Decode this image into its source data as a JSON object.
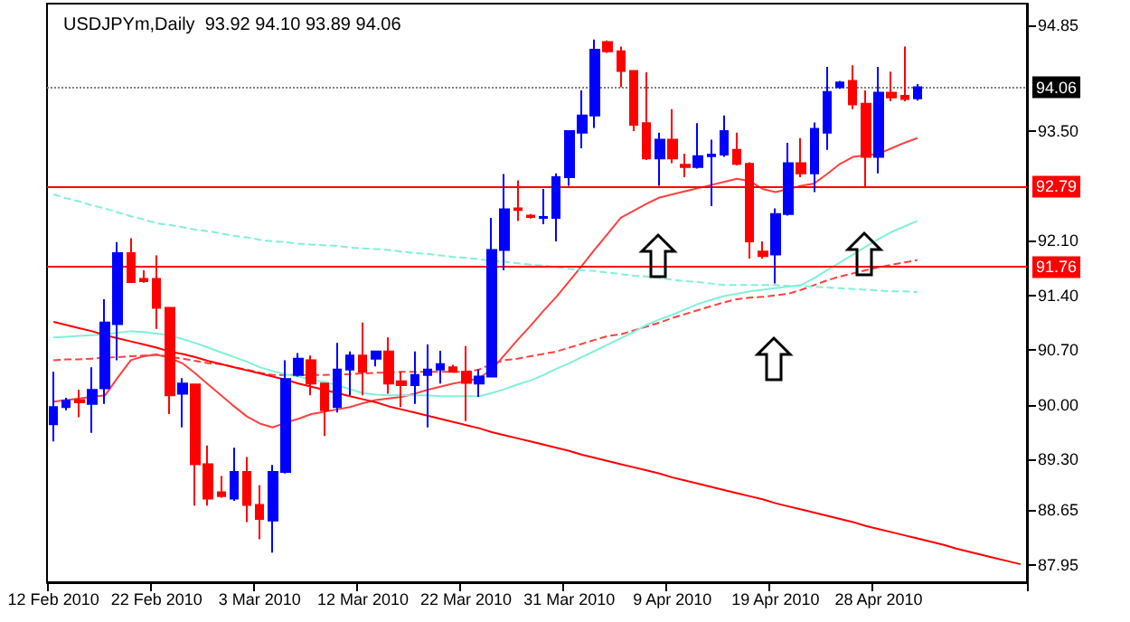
{
  "chart_data": {
    "type": "candlestick",
    "title": "USDJPYm,Daily  93.92 94.10 93.89 94.06",
    "categories": [
      "12 Feb 2010",
      null,
      null,
      null,
      null,
      null,
      null,
      null,
      "22 Feb 2010",
      null,
      null,
      null,
      null,
      null,
      null,
      null,
      "3 Mar 2010",
      null,
      null,
      null,
      null,
      null,
      null,
      null,
      "12 Mar 2010",
      null,
      null,
      null,
      null,
      null,
      null,
      null,
      "22 Mar 2010",
      null,
      null,
      null,
      null,
      null,
      null,
      null,
      "31 Mar 2010",
      null,
      null,
      null,
      null,
      null,
      null,
      null,
      "9 Apr 2010",
      null,
      null,
      null,
      null,
      null,
      null,
      null,
      "19 Apr 2010",
      null,
      null,
      null,
      null,
      null,
      null,
      null,
      "28 Apr 2010",
      null,
      null,
      null,
      null,
      null,
      null,
      null,
      null,
      null,
      null,
      null
    ],
    "ohlc": [
      [
        89.75,
        90.42,
        89.53,
        89.97
      ],
      [
        89.97,
        90.09,
        89.93,
        90.05
      ],
      [
        90.06,
        90.19,
        89.84,
        90.03
      ],
      [
        90.01,
        90.48,
        89.64,
        90.19
      ],
      [
        90.21,
        91.35,
        90.01,
        91.05
      ],
      [
        91.03,
        92.08,
        90.57,
        91.94
      ],
      [
        91.94,
        92.13,
        91.56,
        91.57
      ],
      [
        91.61,
        91.72,
        91.56,
        91.58
      ],
      [
        91.61,
        91.91,
        90.97,
        91.24
      ],
      [
        91.24,
        91.25,
        89.88,
        90.12
      ],
      [
        90.14,
        90.34,
        89.71,
        90.27
      ],
      [
        90.26,
        90.27,
        88.71,
        89.24
      ],
      [
        89.24,
        89.48,
        88.71,
        88.8
      ],
      [
        88.88,
        89.09,
        88.81,
        88.83
      ],
      [
        88.8,
        89.45,
        88.77,
        89.14
      ],
      [
        89.14,
        89.33,
        88.5,
        88.72
      ],
      [
        88.72,
        88.97,
        88.28,
        88.54
      ],
      [
        88.52,
        89.23,
        88.11,
        89.14
      ],
      [
        89.14,
        90.57,
        89.12,
        90.33
      ],
      [
        90.38,
        90.66,
        90.36,
        90.59
      ],
      [
        90.57,
        90.63,
        90.12,
        90.27
      ],
      [
        90.27,
        90.28,
        89.6,
        89.93
      ],
      [
        89.97,
        90.79,
        89.9,
        90.45
      ],
      [
        90.45,
        90.68,
        90.12,
        90.63
      ],
      [
        90.63,
        91.05,
        90.12,
        90.42
      ],
      [
        90.59,
        90.69,
        90.49,
        90.68
      ],
      [
        90.68,
        90.86,
        90.14,
        90.27
      ],
      [
        90.3,
        90.42,
        89.97,
        90.25
      ],
      [
        90.25,
        90.68,
        90.01,
        90.38
      ],
      [
        90.38,
        90.77,
        89.71,
        90.45
      ],
      [
        90.45,
        90.69,
        90.27,
        90.52
      ],
      [
        90.48,
        90.51,
        90.41,
        90.42
      ],
      [
        90.42,
        90.75,
        89.79,
        90.28
      ],
      [
        90.27,
        90.45,
        90.1,
        90.36
      ],
      [
        90.36,
        92.39,
        90.35,
        91.98
      ],
      [
        91.98,
        92.95,
        91.72,
        92.5
      ],
      [
        92.51,
        92.87,
        92.35,
        92.49
      ],
      [
        92.42,
        92.44,
        92.38,
        92.4
      ],
      [
        92.39,
        92.76,
        92.31,
        92.4
      ],
      [
        92.39,
        92.96,
        92.09,
        92.91
      ],
      [
        92.91,
        93.5,
        92.8,
        93.5
      ],
      [
        93.48,
        94.02,
        93.28,
        93.7
      ],
      [
        93.7,
        94.67,
        93.54,
        94.54
      ],
      [
        94.64,
        94.66,
        94.5,
        94.52
      ],
      [
        94.52,
        94.58,
        94.06,
        94.27
      ],
      [
        94.27,
        94.27,
        93.5,
        93.58
      ],
      [
        93.6,
        94.25,
        93.13,
        93.15
      ],
      [
        93.15,
        93.48,
        92.8,
        93.39
      ],
      [
        93.39,
        93.78,
        93.09,
        93.15
      ],
      [
        93.07,
        93.21,
        92.91,
        93.04
      ],
      [
        93.04,
        93.6,
        93.02,
        93.18
      ],
      [
        93.18,
        93.39,
        92.54,
        93.2
      ],
      [
        93.2,
        93.7,
        93.17,
        93.5
      ],
      [
        93.26,
        93.48,
        93.06,
        93.08
      ],
      [
        93.08,
        93.1,
        91.87,
        92.09
      ],
      [
        91.96,
        92.09,
        91.87,
        91.9
      ],
      [
        91.92,
        92.51,
        91.55,
        92.44
      ],
      [
        92.44,
        93.35,
        92.42,
        93.09
      ],
      [
        93.09,
        93.41,
        92.91,
        92.96
      ],
      [
        92.96,
        93.61,
        92.72,
        93.53
      ],
      [
        93.48,
        94.32,
        93.26,
        94.0
      ],
      [
        94.06,
        94.14,
        94.04,
        94.12
      ],
      [
        94.14,
        94.34,
        93.78,
        93.84
      ],
      [
        93.85,
        94.02,
        92.78,
        93.17
      ],
      [
        93.17,
        94.32,
        92.96,
        93.99
      ],
      [
        93.99,
        94.26,
        93.88,
        93.93
      ],
      [
        93.95,
        94.58,
        93.88,
        93.91
      ],
      [
        93.92,
        94.1,
        93.89,
        94.06
      ],
      null,
      null,
      null,
      null,
      null,
      null,
      null,
      null
    ],
    "colors": [
      "#0000ff",
      "#0000ff",
      "#ff0000",
      "#0000ff",
      "#0000ff",
      "#0000ff",
      "#ff0000",
      "#ff0000",
      "#ff0000",
      "#ff0000",
      "#0000ff",
      "#ff0000",
      "#ff0000",
      "#ff0000",
      "#0000ff",
      "#ff0000",
      "#ff0000",
      "#0000ff",
      "#0000ff",
      "#0000ff",
      "#ff0000",
      "#ff0000",
      "#0000ff",
      "#0000ff",
      "#ff0000",
      "#0000ff",
      "#ff0000",
      "#ff0000",
      "#0000ff",
      "#0000ff",
      "#0000ff",
      "#ff0000",
      "#ff0000",
      "#0000ff",
      "#0000ff",
      "#0000ff",
      "#ff0000",
      "#ff0000",
      "#0000ff",
      "#0000ff",
      "#0000ff",
      "#0000ff",
      "#0000ff",
      "#ff0000",
      "#ff0000",
      "#ff0000",
      "#ff0000",
      "#0000ff",
      "#ff0000",
      "#ff0000",
      "#0000ff",
      "#0000ff",
      "#0000ff",
      "#ff0000",
      "#ff0000",
      "#ff0000",
      "#0000ff",
      "#0000ff",
      "#ff0000",
      "#0000ff",
      "#0000ff",
      "#0000ff",
      "#ff0000",
      "#ff0000",
      "#0000ff",
      "#ff0000",
      "#ff0000",
      "#0000ff",
      null,
      null,
      null,
      null,
      null,
      null,
      null,
      null
    ],
    "series": [
      {
        "type": "line",
        "color": "#ff4040",
        "line_style": "solid",
        "values": [
          90.04,
          90.06,
          90.08,
          90.1,
          90.12,
          90.35,
          90.57,
          90.62,
          90.64,
          90.6,
          90.53,
          90.4,
          90.26,
          90.12,
          89.98,
          89.85,
          89.76,
          89.71,
          89.77,
          89.82,
          89.88,
          89.91,
          89.94,
          89.97,
          90.02,
          90.06,
          90.08,
          90.1,
          90.14,
          90.19,
          90.23,
          90.27,
          90.3,
          90.34,
          90.45,
          90.64,
          90.83,
          91.01,
          91.2,
          91.38,
          91.58,
          91.78,
          91.99,
          92.19,
          92.39,
          92.48,
          92.57,
          92.65,
          92.69,
          92.73,
          92.77,
          92.81,
          92.85,
          92.89,
          92.86,
          92.76,
          92.72,
          92.76,
          92.8,
          92.83,
          92.95,
          93.08,
          93.17,
          93.19,
          93.21,
          93.28,
          93.35,
          93.41,
          null,
          null,
          null,
          null,
          null,
          null,
          null,
          null
        ]
      },
      {
        "type": "line",
        "color": "#ff4040",
        "line_style": "dashed",
        "values": [
          90.57,
          90.58,
          90.58,
          90.59,
          90.6,
          90.61,
          90.62,
          90.63,
          90.64,
          90.61,
          90.59,
          90.56,
          90.53,
          90.52,
          90.48,
          90.45,
          90.41,
          90.38,
          90.38,
          90.38,
          90.38,
          90.38,
          90.39,
          90.39,
          90.4,
          90.41,
          90.41,
          90.42,
          90.42,
          90.42,
          90.42,
          90.42,
          90.42,
          90.45,
          90.52,
          90.57,
          90.59,
          90.62,
          90.65,
          90.68,
          90.73,
          90.78,
          90.83,
          90.88,
          90.9,
          90.95,
          91.0,
          91.05,
          91.11,
          91.16,
          91.21,
          91.26,
          91.31,
          91.35,
          91.37,
          91.38,
          91.4,
          91.42,
          91.47,
          91.53,
          91.59,
          91.64,
          91.68,
          91.72,
          91.76,
          91.79,
          91.82,
          91.85,
          null,
          null,
          null,
          null,
          null,
          null,
          null,
          null
        ]
      },
      {
        "type": "line",
        "color": "#80f0d8",
        "line_style": "solid",
        "values": [
          90.86,
          90.87,
          90.88,
          90.89,
          90.9,
          90.92,
          90.94,
          90.93,
          90.91,
          90.89,
          90.84,
          90.79,
          90.73,
          90.67,
          90.61,
          90.55,
          90.48,
          90.43,
          90.39,
          90.36,
          90.32,
          90.29,
          90.25,
          90.2,
          90.15,
          90.13,
          90.12,
          90.12,
          90.12,
          90.12,
          90.11,
          90.11,
          90.11,
          90.11,
          90.15,
          90.2,
          90.26,
          90.31,
          90.38,
          90.46,
          90.53,
          90.61,
          90.69,
          90.77,
          90.85,
          90.93,
          91.02,
          91.09,
          91.15,
          91.22,
          91.29,
          91.34,
          91.39,
          91.42,
          91.45,
          91.47,
          91.49,
          91.51,
          91.53,
          91.62,
          91.72,
          91.82,
          91.92,
          92.02,
          92.12,
          92.21,
          92.28,
          92.35,
          null,
          null,
          null,
          null,
          null,
          null,
          null,
          null
        ]
      },
      {
        "type": "line",
        "color": "#80f0d8",
        "line_style": "dashed",
        "values": [
          92.69,
          92.64,
          92.6,
          92.55,
          92.51,
          92.46,
          92.41,
          92.37,
          92.32,
          92.3,
          92.27,
          92.24,
          92.22,
          92.19,
          92.16,
          92.14,
          92.11,
          92.09,
          92.08,
          92.06,
          92.05,
          92.04,
          92.03,
          92.01,
          92.0,
          91.99,
          91.98,
          91.96,
          91.94,
          91.93,
          91.91,
          91.89,
          91.88,
          91.86,
          91.84,
          91.83,
          91.81,
          91.79,
          91.78,
          91.76,
          91.74,
          91.72,
          91.71,
          91.69,
          91.67,
          91.65,
          91.64,
          91.62,
          91.6,
          91.58,
          91.57,
          91.55,
          91.53,
          91.53,
          91.53,
          91.53,
          91.53,
          91.52,
          91.52,
          91.51,
          91.5,
          91.49,
          91.48,
          91.47,
          91.46,
          91.45,
          91.45,
          91.44,
          null,
          null,
          null,
          null,
          null,
          null,
          null,
          null
        ]
      },
      {
        "type": "line",
        "color": "#ff0000",
        "line_style": "solid",
        "values": [
          91.06,
          91.02,
          90.98,
          90.94,
          90.89,
          90.85,
          90.81,
          90.77,
          90.73,
          90.68,
          90.65,
          90.61,
          90.56,
          90.52,
          90.48,
          90.44,
          90.4,
          90.36,
          90.32,
          90.27,
          90.23,
          90.19,
          90.15,
          90.11,
          90.07,
          90.03,
          89.98,
          89.94,
          89.9,
          89.86,
          89.82,
          89.78,
          89.74,
          89.7,
          89.65,
          89.61,
          89.57,
          89.53,
          89.49,
          89.45,
          89.41,
          89.36,
          89.32,
          89.28,
          89.24,
          89.2,
          89.16,
          89.12,
          89.07,
          89.03,
          88.99,
          88.95,
          88.91,
          88.87,
          88.83,
          88.79,
          88.74,
          88.7,
          88.66,
          88.62,
          88.58,
          88.54,
          88.5,
          88.45,
          88.41,
          88.37,
          88.33,
          88.29,
          88.25,
          88.21,
          88.16,
          88.12,
          88.08,
          88.04,
          88.0,
          87.96
        ]
      }
    ],
    "marker": "none",
    "ylim": [
      87.73,
      95.13
    ],
    "yticks": [
      {
        "value": 87.95,
        "label": "87.95"
      },
      {
        "value": 88.65,
        "label": "88.65"
      },
      {
        "value": 89.3,
        "label": "89.30"
      },
      {
        "value": 90,
        "label": "90.00"
      },
      {
        "value": 90.7,
        "label": "90.70"
      },
      {
        "value": 91.4,
        "label": "91.40"
      },
      {
        "value": 92.1,
        "label": "92.10"
      },
      {
        "value": 93.5,
        "label": "93.50"
      },
      {
        "value": 94.85,
        "label": "94.85"
      }
    ],
    "ref_lines": [
      {
        "axis": "y",
        "value": 94.06,
        "label": "94.06",
        "color": "#808080",
        "line_style": "dotted"
      },
      {
        "axis": "y",
        "value": 92.79,
        "label": "92.79",
        "color": "#ff0000",
        "line_style": "solid"
      },
      {
        "axis": "y",
        "value": 91.76,
        "label": "91.76",
        "color": "#ff0000",
        "line_style": "solid"
      }
    ]
  }
}
